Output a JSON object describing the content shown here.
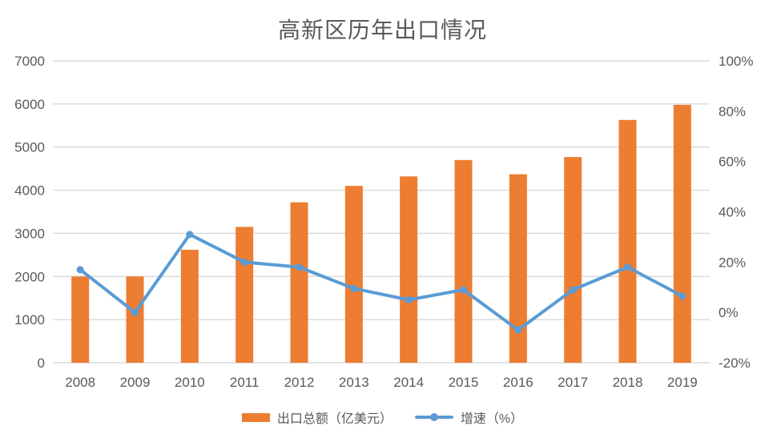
{
  "chart_data": {
    "type": "combo",
    "title": "高新区历年出口情况",
    "categories": [
      "2008",
      "2009",
      "2010",
      "2011",
      "2012",
      "2013",
      "2014",
      "2015",
      "2016",
      "2017",
      "2018",
      "2019"
    ],
    "series": [
      {
        "name": "出口总额（亿美元）",
        "type": "bar",
        "axis": "left",
        "color": "#ED7D31",
        "values": [
          2000,
          2000,
          2620,
          3150,
          3720,
          4100,
          4320,
          4700,
          4370,
          4770,
          5630,
          5980
        ]
      },
      {
        "name": "增速（%）",
        "type": "line",
        "axis": "right",
        "color": "#5B9BD5",
        "values": [
          17,
          0,
          31,
          20,
          18,
          9.5,
          5,
          9,
          -7,
          9,
          18,
          6.5
        ]
      }
    ],
    "left_axis": {
      "min": 0,
      "max": 7000,
      "step": 1000,
      "tick_labels": [
        "0",
        "1000",
        "2000",
        "3000",
        "4000",
        "5000",
        "6000",
        "7000"
      ]
    },
    "right_axis": {
      "min": -20,
      "max": 100,
      "step": 20,
      "tick_labels": [
        "-20%",
        "0%",
        "20%",
        "40%",
        "60%",
        "80%",
        "100%"
      ]
    },
    "grid": true,
    "legend_position": "bottom"
  },
  "colors": {
    "bar": "#ED7D31",
    "line": "#5B9BD5",
    "grid": "#D9D9D9",
    "axis_text": "#595959",
    "title_text": "#595959",
    "background": "#FFFFFF"
  }
}
